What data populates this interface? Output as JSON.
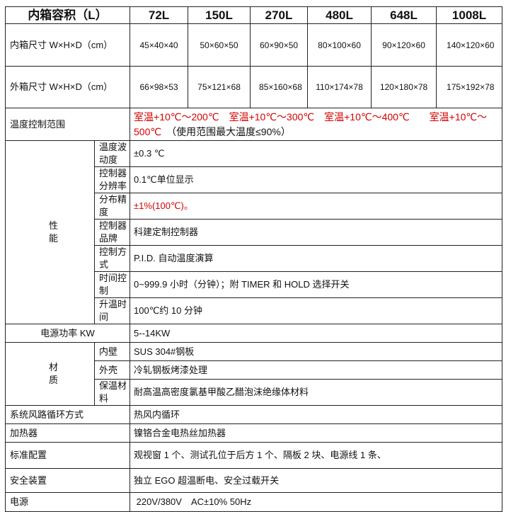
{
  "header": {
    "label": "内箱容积（L）",
    "models": [
      "72L",
      "150L",
      "270L",
      "480L",
      "648L",
      "1008L"
    ]
  },
  "inner_size": {
    "label": "内箱尺寸 W×H×D（cm）",
    "values": [
      "45×40×40",
      "50×60×50",
      "60×90×50",
      "80×100×60",
      "90×120×60",
      "140×120×60"
    ]
  },
  "outer_size": {
    "label": "外箱尺寸 W×H×D（cm）",
    "values": [
      "66×98×53",
      "75×121×68",
      "85×160×68",
      "110×174×78",
      "120×180×78",
      "175×192×78"
    ]
  },
  "temp_range": {
    "label": "温度控制范围",
    "value": "室温+10℃～200℃　室温+10℃～300℃　室温+10℃～400℃　　室温+10℃～500℃",
    "note": "　（使用范围最大温度≤90%）"
  },
  "performance": {
    "group": "性能",
    "rows": [
      {
        "label": "温度波动度",
        "value": "±0.3 ℃"
      },
      {
        "label": "控制器分辨率",
        "value": "0.1℃单位显示"
      },
      {
        "label": "分布精度",
        "value": "±1%(100℃)。"
      },
      {
        "label": "控制器品牌",
        "value": "科建定制控制器"
      },
      {
        "label": "控制方式",
        "value": "P.I.D. 自动温度演算"
      },
      {
        "label": "时间控制",
        "value": "0~999.9 小时（分钟）；附 TIMER 和 HOLD 选择开关"
      },
      {
        "label": "升温时间",
        "value": "100℃约 10 分钟"
      }
    ]
  },
  "power_kw": {
    "label": "电源功率 KW",
    "value": "5--14KW"
  },
  "material": {
    "group": "材质",
    "rows": [
      {
        "label": "内壁",
        "value": "SUS 304#钢板"
      },
      {
        "label": "外壳",
        "value": "冷轧钢板烤漆处理"
      },
      {
        "label": "保温材料",
        "value": "耐高温高密度氯基甲酸乙醋泡沫绝缘体材料"
      }
    ]
  },
  "rows": [
    {
      "label": "系统风路循环方式",
      "value": "热风内循环"
    },
    {
      "label": "加热器",
      "value": "镍铬合金电热丝加热器"
    },
    {
      "label": "标准配置",
      "value": "观视窗 1 个、测试孔位于后方 1 个、隔板 2 块、电源线 1 条、"
    },
    {
      "label": "安全装置",
      "value": "独立 EGO 超温断电、安全过载开关"
    },
    {
      "label": "电源",
      "value": " 220V/380V　AC±10% 50Hz"
    }
  ],
  "colors": {
    "highlight": "#d40000"
  }
}
